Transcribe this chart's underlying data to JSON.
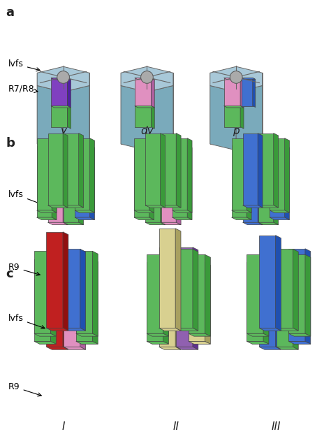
{
  "background_color": "#ffffff",
  "colors": {
    "light_blue": "#a8c8d8",
    "light_blue_dark": "#7aaabb",
    "light_blue_side": "#8ab8c8",
    "green": "#5cb85c",
    "green_dark": "#3a9a3a",
    "green_side": "#4aaa4a",
    "purple": "#8040c0",
    "purple_dark": "#5020a0",
    "purple_side": "#6030b0",
    "pink": "#e090c0",
    "pink_dark": "#b060a0",
    "pink_side": "#c878b0",
    "blue": "#4070d0",
    "blue_dark": "#2050b0",
    "blue_side": "#3060c0",
    "gray": "#aaaaaa",
    "gray_dark": "#888888",
    "red": "#c02020",
    "red_dark": "#901010",
    "red_side": "#a01818",
    "beige": "#d8d090",
    "beige_dark": "#a8a060",
    "beige_side": "#c0b878",
    "mauve": "#9060b0",
    "mauve_dark": "#603090",
    "mauve_side": "#7848a0"
  },
  "row_labels": [
    "a",
    "b",
    "c"
  ],
  "col_labels_a": [
    "y",
    "dy",
    "p"
  ],
  "col_labels_c": [
    "I",
    "II",
    "III"
  ]
}
